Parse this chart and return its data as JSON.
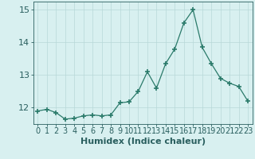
{
  "x": [
    0,
    1,
    2,
    3,
    4,
    5,
    6,
    7,
    8,
    9,
    10,
    11,
    12,
    13,
    14,
    15,
    16,
    17,
    18,
    19,
    20,
    21,
    22,
    23
  ],
  "y": [
    11.9,
    11.95,
    11.85,
    11.65,
    11.68,
    11.75,
    11.78,
    11.75,
    11.78,
    12.15,
    12.18,
    12.5,
    13.1,
    12.6,
    13.35,
    13.8,
    14.6,
    15.0,
    13.85,
    13.35,
    12.9,
    12.75,
    12.65,
    12.2
  ],
  "line_color": "#2a7a6a",
  "marker": "+",
  "marker_size": 4,
  "bg_color": "#d8f0f0",
  "grid_color": "#b8d8d8",
  "axis_color": "#2a5f5f",
  "xlabel": "Humidex (Indice chaleur)",
  "ylim": [
    11.5,
    15.25
  ],
  "yticks": [
    12,
    13,
    14,
    15
  ],
  "xticks": [
    0,
    1,
    2,
    3,
    4,
    5,
    6,
    7,
    8,
    9,
    10,
    11,
    12,
    13,
    14,
    15,
    16,
    17,
    18,
    19,
    20,
    21,
    22,
    23
  ],
  "font_size": 7,
  "xlabel_fontsize": 8
}
